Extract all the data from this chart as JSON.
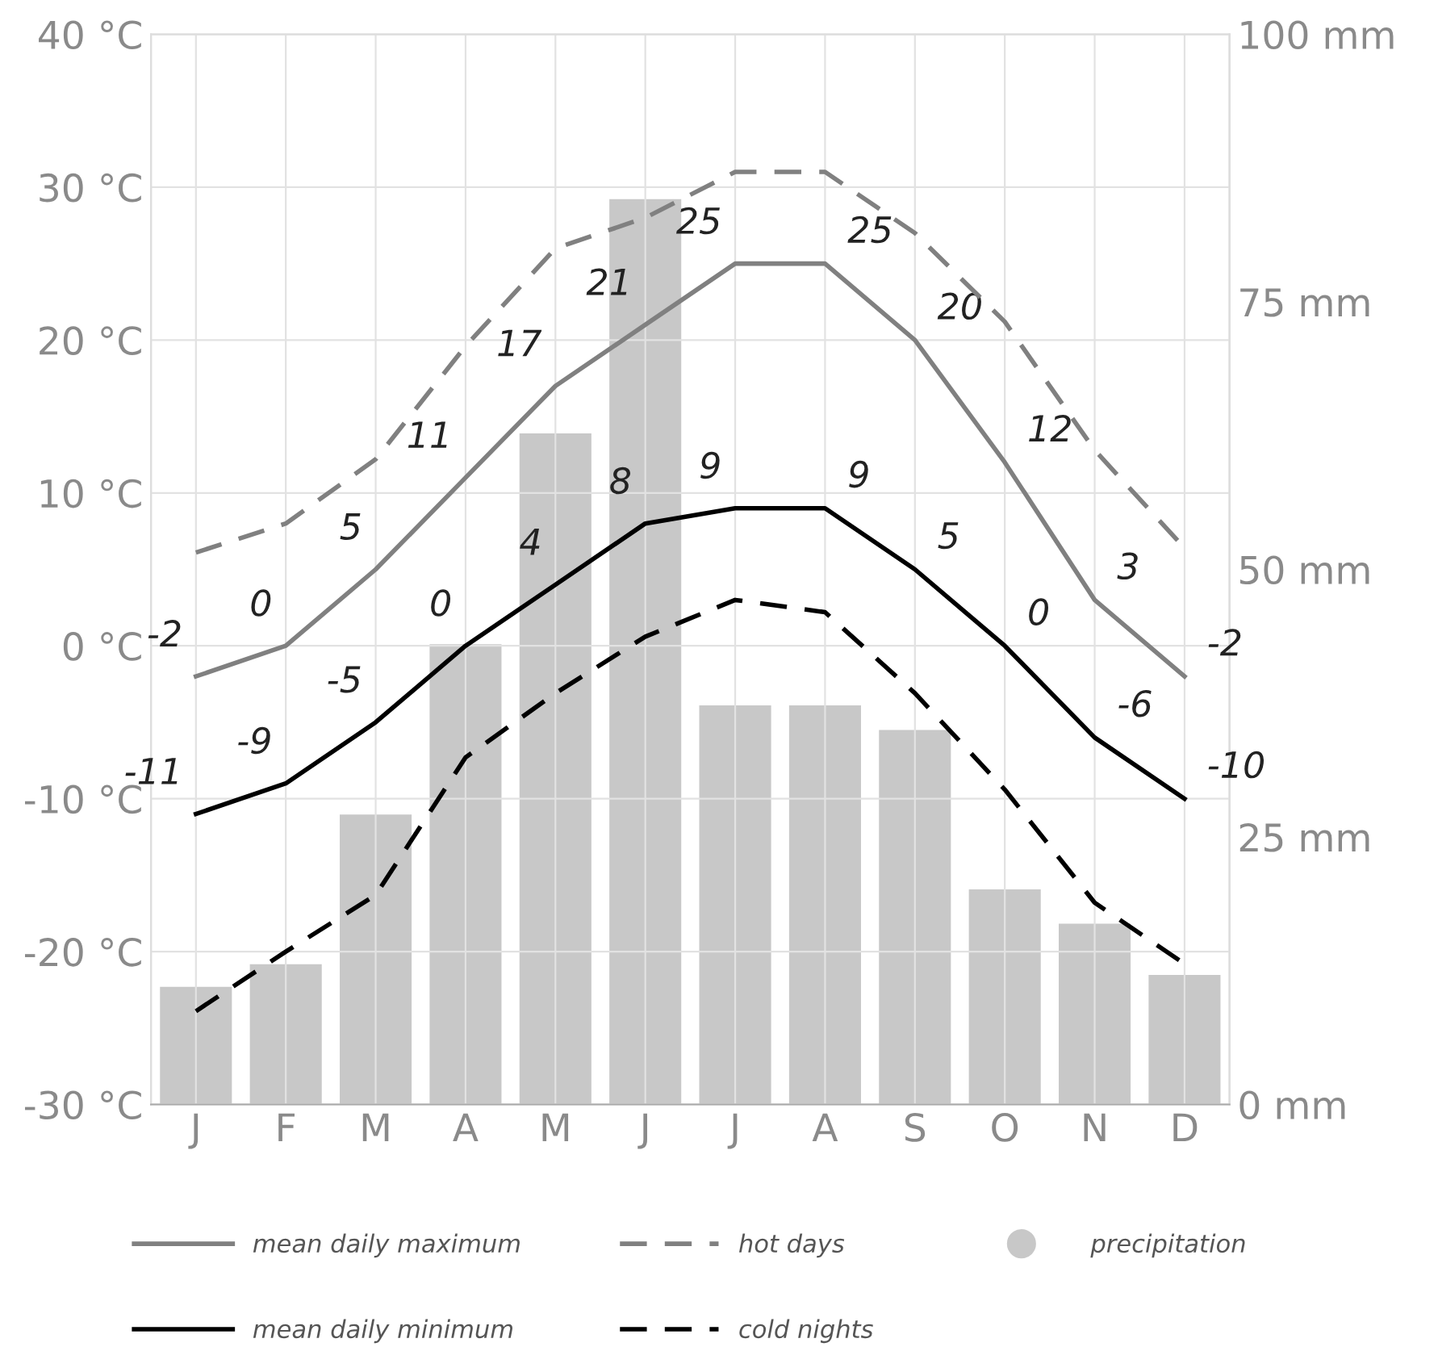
{
  "chart_data": {
    "type": "line",
    "categories": [
      "J",
      "F",
      "M",
      "A",
      "M",
      "J",
      "J",
      "A",
      "S",
      "O",
      "N",
      "D"
    ],
    "ylim": [
      -30,
      40
    ],
    "yticks": [
      {
        "value": -30,
        "label": "-30 °C"
      },
      {
        "value": -20,
        "label": "-20 °C"
      },
      {
        "value": -10,
        "label": "-10 °C"
      },
      {
        "value": 0,
        "label": "0 °C"
      },
      {
        "value": 10,
        "label": "10 °C"
      },
      {
        "value": 20,
        "label": "20 °C"
      },
      {
        "value": 30,
        "label": "30 °C"
      },
      {
        "value": 40,
        "label": "40 °C"
      }
    ],
    "y2lim": [
      0,
      100
    ],
    "y2ticks": [
      {
        "value": 0,
        "label": "0 mm"
      },
      {
        "value": 25,
        "label": "25 mm"
      },
      {
        "value": 50,
        "label": "50 mm"
      },
      {
        "value": 75,
        "label": "75 mm"
      },
      {
        "value": 100,
        "label": "100 mm"
      }
    ],
    "grid": true,
    "legend": "bottom",
    "series": [
      {
        "name": "precipitation",
        "type": "bar",
        "axis": "y2",
        "color": "#c8c8c8",
        "values": [
          11.0,
          13.1,
          27.1,
          43.0,
          62.7,
          84.6,
          37.3,
          37.3,
          35.0,
          20.1,
          16.9,
          12.1
        ]
      },
      {
        "name": "mean daily maximum",
        "line_style": "solid",
        "color": "#808080",
        "values": [
          -2,
          0,
          5,
          11,
          17,
          21,
          25,
          25,
          20,
          12,
          3,
          -2
        ],
        "value_labels": [
          "-2",
          "0",
          "5",
          "11",
          "17",
          "21",
          "25",
          "25",
          "20",
          "12",
          "3",
          "-2"
        ]
      },
      {
        "name": "hot days",
        "line_style": "dashed",
        "color": "#808080",
        "values": [
          6.1,
          8.0,
          12.2,
          19.6,
          26.0,
          28.0,
          31.0,
          31.0,
          27.0,
          21.2,
          12.8,
          6.4
        ]
      },
      {
        "name": "mean daily minimum",
        "line_style": "solid",
        "color": "#000000",
        "values": [
          -11,
          -9,
          -5,
          0,
          4,
          8,
          9,
          9,
          5,
          0,
          -6,
          -10
        ],
        "value_labels": [
          "-11",
          "-9",
          "-5",
          "0",
          "4",
          "8",
          "9",
          "9",
          "5",
          "0",
          "-6",
          "-10"
        ]
      },
      {
        "name": "cold nights",
        "line_style": "dashed",
        "color": "#000000",
        "values": [
          -23.9,
          -20.0,
          -16.3,
          -7.3,
          -3.1,
          0.6,
          3.0,
          2.2,
          -3.1,
          -9.4,
          -16.8,
          -20.8
        ]
      }
    ]
  }
}
